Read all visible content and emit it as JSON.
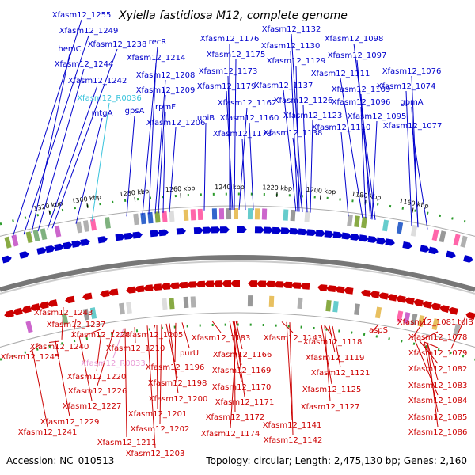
{
  "title": "Xylella fastidiosa M12, complete genome",
  "footer": {
    "accession": "Accession: NC_010513",
    "stats": "Topology: circular; Length: 2,475,130 bp; Genes: 2,160"
  },
  "colors": {
    "forward": "#0000cc",
    "reverse": "#cc0000",
    "rna_forward": "#39c3dc",
    "rna_reverse": "#e89ad6",
    "backbone": "#888888"
  },
  "ticks": [
    "1320 kbp",
    "1300 kbp",
    "1280 kbp",
    "1260 kbp",
    "1240 kbp",
    "1220 kbp",
    "1200 kbp",
    "1180 kbp",
    "1160 kbp"
  ],
  "forward_labels": [
    "Xfasm12_1255",
    "Xfasm12_1249",
    "hemC",
    "Xfasm12_1244",
    "Xfasm12_1242",
    "mtgA",
    "Xfasm12_1238",
    "recR",
    "Xfasm12_1214",
    "Xfasm12_1208",
    "Xfasm12_1209",
    "rpmF",
    "gpsA",
    "Xfasm12_1206",
    "ubiB",
    "Xfasm12_1176",
    "Xfasm12_1175",
    "Xfasm12_1173",
    "Xfasm12_1179",
    "Xfasm12_1162",
    "Xfasm12_1160",
    "Xfasm12_1178",
    "Xfasm12_1132",
    "Xfasm12_1130",
    "Xfasm12_1129",
    "Xfasm12_1137",
    "Xfasm12_1126",
    "Xfasm12_1123",
    "Xfasm12_1138",
    "Xfasm12_1098",
    "Xfasm12_1097",
    "Xfasm12_1111",
    "Xfasm12_1109",
    "Xfasm12_1096",
    "Xfasm12_1095",
    "Xfasm12_1110",
    "Xfasm12_1076",
    "Xfasm12_1074",
    "gpmA",
    "Xfasm12_1077"
  ],
  "forward_rna_labels": [
    "Xfasm12_R0036"
  ],
  "reverse_labels": [
    "Xfasm12_1243",
    "Xfasm12_1237",
    "Xfasm12_1228",
    "Xfasm12_1240",
    "Xfasm12_1245",
    "Xfasm12_1220",
    "Xfasm12_1226",
    "Xfasm12_1227",
    "Xfasm12_1229",
    "Xfasm12_1241",
    "Xfasm12_1205",
    "Xfasm12_1210",
    "Xfasm12_1196",
    "Xfasm12_1198",
    "Xfasm12_1200",
    "Xfasm12_1201",
    "Xfasm12_1202",
    "Xfasm12_1211",
    "Xfasm12_1203",
    "purU",
    "Xfasm12_1183",
    "Xfasm12_1166",
    "Xfasm12_1169",
    "Xfasm12_1170",
    "Xfasm12_1171",
    "Xfasm12_1172",
    "Xfasm12_1174",
    "Xfasm12_1143",
    "Xfasm12_1141",
    "Xfasm12_1142",
    "Xfasm12_1118",
    "Xfasm12_1119",
    "Xfasm12_1121",
    "Xfasm12_1125",
    "Xfasm12_1127",
    "aspS",
    "Xfasm12_1081",
    "tolB",
    "Xfasm12_1078",
    "Xfasm12_1079",
    "Xfasm12_1082",
    "Xfasm12_1083",
    "Xfasm12_1084",
    "Xfasm12_1085",
    "Xfasm12_1086"
  ],
  "reverse_rna_labels": [
    "Xfasm12_R0033"
  ]
}
